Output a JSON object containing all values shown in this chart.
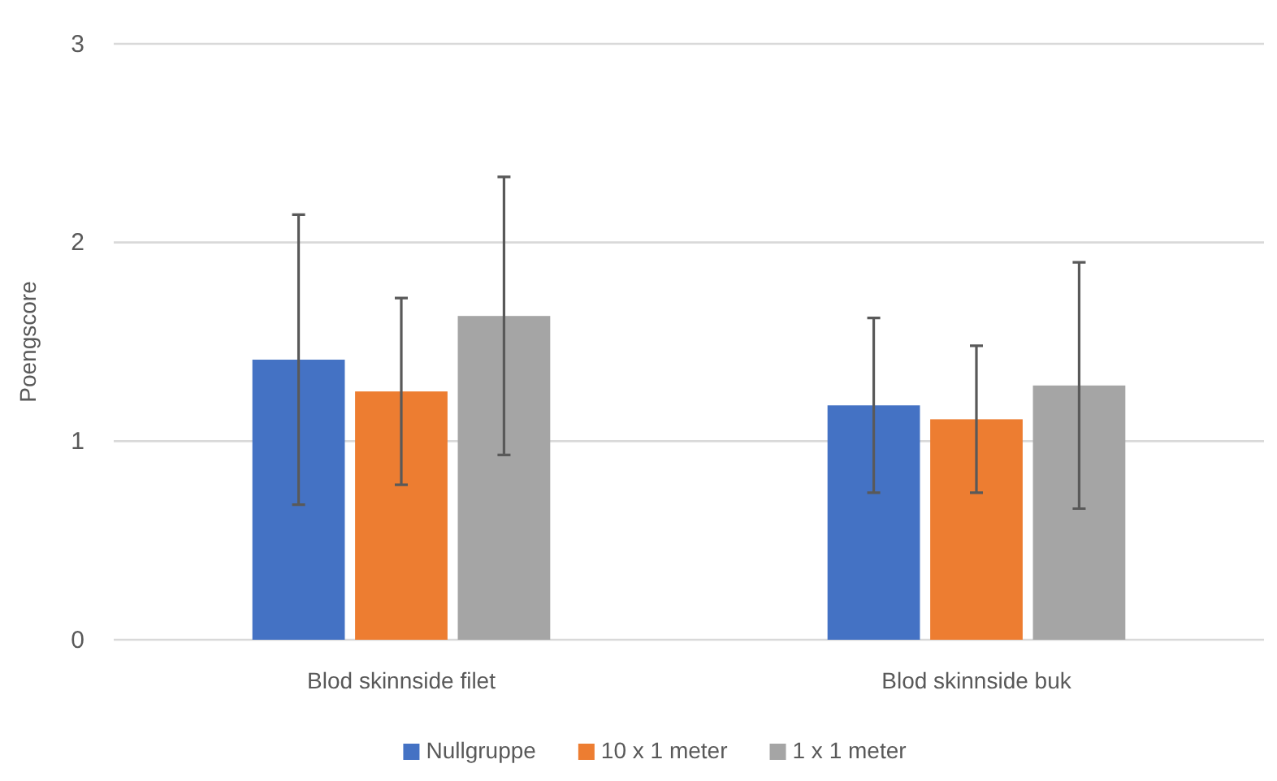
{
  "chart_data": {
    "type": "bar",
    "ylabel": "Poengscore",
    "categories": [
      "Blod skinnside filet",
      "Blod skinnside buk"
    ],
    "series": [
      {
        "name": "Nullgruppe",
        "color": "#4472c4",
        "values": [
          1.41,
          1.18
        ],
        "errors": [
          0.73,
          0.44
        ]
      },
      {
        "name": "10 x 1 meter",
        "color": "#ed7d31",
        "values": [
          1.25,
          1.11
        ],
        "errors": [
          0.47,
          0.37
        ]
      },
      {
        "name": "1 x 1 meter",
        "color": "#a5a5a5",
        "values": [
          1.63,
          1.28
        ],
        "errors": [
          0.7,
          0.62
        ]
      }
    ],
    "ylim": [
      0,
      3
    ],
    "yticks": [
      0,
      1,
      2,
      3
    ],
    "grid": "y",
    "legend": "bottom"
  }
}
